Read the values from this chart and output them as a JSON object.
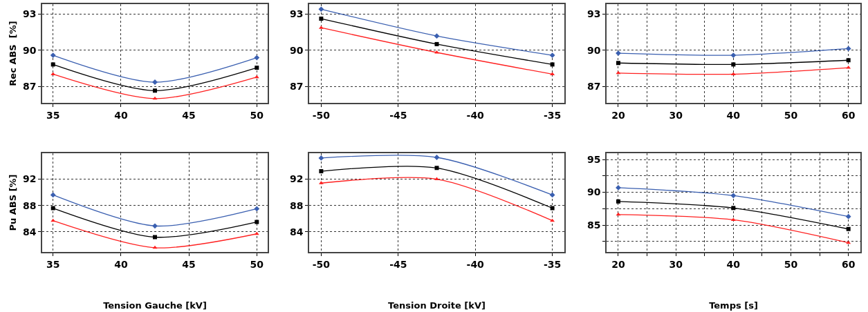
{
  "chart_data": [
    {
      "type": "line",
      "ylabel": "Rec ABS  [%]",
      "x": [
        35,
        42.5,
        50
      ],
      "xlim": [
        34.2,
        50.8
      ],
      "xticks": [
        35,
        40,
        45,
        50
      ],
      "ylim": [
        85.65,
        93.8
      ],
      "yticks": [
        87,
        90,
        93
      ],
      "grid": true,
      "line_style": "solid",
      "series": [
        {
          "color": "#3a5fb0",
          "marker": "diamond",
          "values": [
            89.58,
            87.36,
            89.38
          ]
        },
        {
          "color": "#000000",
          "marker": "square",
          "values": [
            88.82,
            86.66,
            88.55
          ]
        },
        {
          "color": "#ff2020",
          "marker": "triangle",
          "values": [
            88.02,
            86.0,
            87.78
          ]
        }
      ]
    },
    {
      "type": "line",
      "x": [
        -50,
        -42.5,
        -35
      ],
      "xlim": [
        -50.78,
        -34.22
      ],
      "xticks": [
        -50,
        -45,
        -40,
        -35
      ],
      "ylim": [
        85.65,
        93.8
      ],
      "yticks": [
        87,
        90,
        93
      ],
      "grid": true,
      "line_style": "solid",
      "series": [
        {
          "color": "#3a5fb0",
          "marker": "diamond",
          "values": [
            93.38,
            91.17,
            89.58
          ]
        },
        {
          "color": "#000000",
          "marker": "square",
          "values": [
            92.6,
            90.5,
            88.82
          ]
        },
        {
          "color": "#ff2020",
          "marker": "triangle",
          "values": [
            91.85,
            89.81,
            88.02
          ]
        }
      ]
    },
    {
      "type": "line",
      "x": [
        20,
        40,
        60
      ],
      "xlim": [
        17.96,
        62.08
      ],
      "xticks": [
        20,
        {
          "value": 25,
          "label": null
        },
        30,
        {
          "value": 35,
          "label": null
        },
        40,
        {
          "value": 45,
          "label": null
        },
        50,
        {
          "value": 55,
          "label": null
        },
        60
      ],
      "ylim": [
        85.65,
        93.8
      ],
      "yticks": [
        87,
        90,
        93
      ],
      "grid": true,
      "line_style": "solid",
      "series": [
        {
          "color": "#3a5fb0",
          "marker": "diamond",
          "values": [
            89.75,
            89.58,
            90.13
          ]
        },
        {
          "color": "#000000",
          "marker": "square",
          "values": [
            88.94,
            88.82,
            89.17
          ]
        },
        {
          "color": "#ff2020",
          "marker": "triangle",
          "values": [
            88.11,
            88.02,
            88.55
          ]
        }
      ]
    },
    {
      "type": "line",
      "xlabel": "Tension Gauche [kV]",
      "ylabel": "Pu ABS [%]",
      "x": [
        35,
        42.5,
        50
      ],
      "xlim": [
        34.2,
        50.8
      ],
      "xticks": [
        35,
        40,
        45,
        50
      ],
      "ylim": [
        80.95,
        95.93
      ],
      "yticks": [
        84,
        88,
        92
      ],
      "grid": true,
      "line_style": "solid",
      "series": [
        {
          "color": "#3a5fb0",
          "marker": "diamond",
          "values": [
            89.6,
            84.9,
            87.5
          ]
        },
        {
          "color": "#000000",
          "marker": "square",
          "values": [
            87.6,
            83.2,
            85.5
          ]
        },
        {
          "color": "#ff2020",
          "marker": "triangle",
          "values": [
            85.7,
            81.6,
            83.7
          ]
        }
      ]
    },
    {
      "type": "line",
      "xlabel": "Tension Droite [kV]",
      "x": [
        -50,
        -42.5,
        -35
      ],
      "xlim": [
        -50.78,
        -34.22
      ],
      "xticks": [
        -50,
        -45,
        -40,
        -35
      ],
      "ylim": [
        80.95,
        95.93
      ],
      "yticks": [
        84,
        88,
        92
      ],
      "grid": true,
      "line_style": "solid",
      "series": [
        {
          "color": "#3a5fb0",
          "marker": "diamond",
          "values": [
            95.2,
            95.3,
            89.6
          ]
        },
        {
          "color": "#000000",
          "marker": "square",
          "values": [
            93.2,
            93.7,
            87.6
          ]
        },
        {
          "color": "#ff2020",
          "marker": "triangle",
          "values": [
            91.4,
            92.0,
            85.7
          ]
        }
      ]
    },
    {
      "type": "line",
      "xlabel": "Temps [s]",
      "x": [
        20,
        40,
        60
      ],
      "xlim": [
        17.96,
        62.08
      ],
      "xticks": [
        20,
        {
          "value": 25,
          "label": null
        },
        30,
        {
          "value": 35,
          "label": null
        },
        40,
        {
          "value": 45,
          "label": null
        },
        50,
        {
          "value": 55,
          "label": null
        },
        60
      ],
      "ylim": [
        80.9,
        95.95
      ],
      "yticks": [
        {
          "value": 82.5,
          "label": null
        },
        85,
        {
          "value": 87.5,
          "label": null
        },
        90,
        {
          "value": 92.5,
          "label": null
        },
        95
      ],
      "grid": true,
      "line_style": "solid",
      "series": [
        {
          "color": "#3a5fb0",
          "marker": "diamond",
          "values": [
            90.7,
            89.5,
            86.3
          ]
        },
        {
          "color": "#000000",
          "marker": "square",
          "values": [
            88.6,
            87.6,
            84.4
          ]
        },
        {
          "color": "#ff2020",
          "marker": "triangle",
          "values": [
            86.6,
            85.8,
            82.3
          ]
        }
      ]
    }
  ]
}
